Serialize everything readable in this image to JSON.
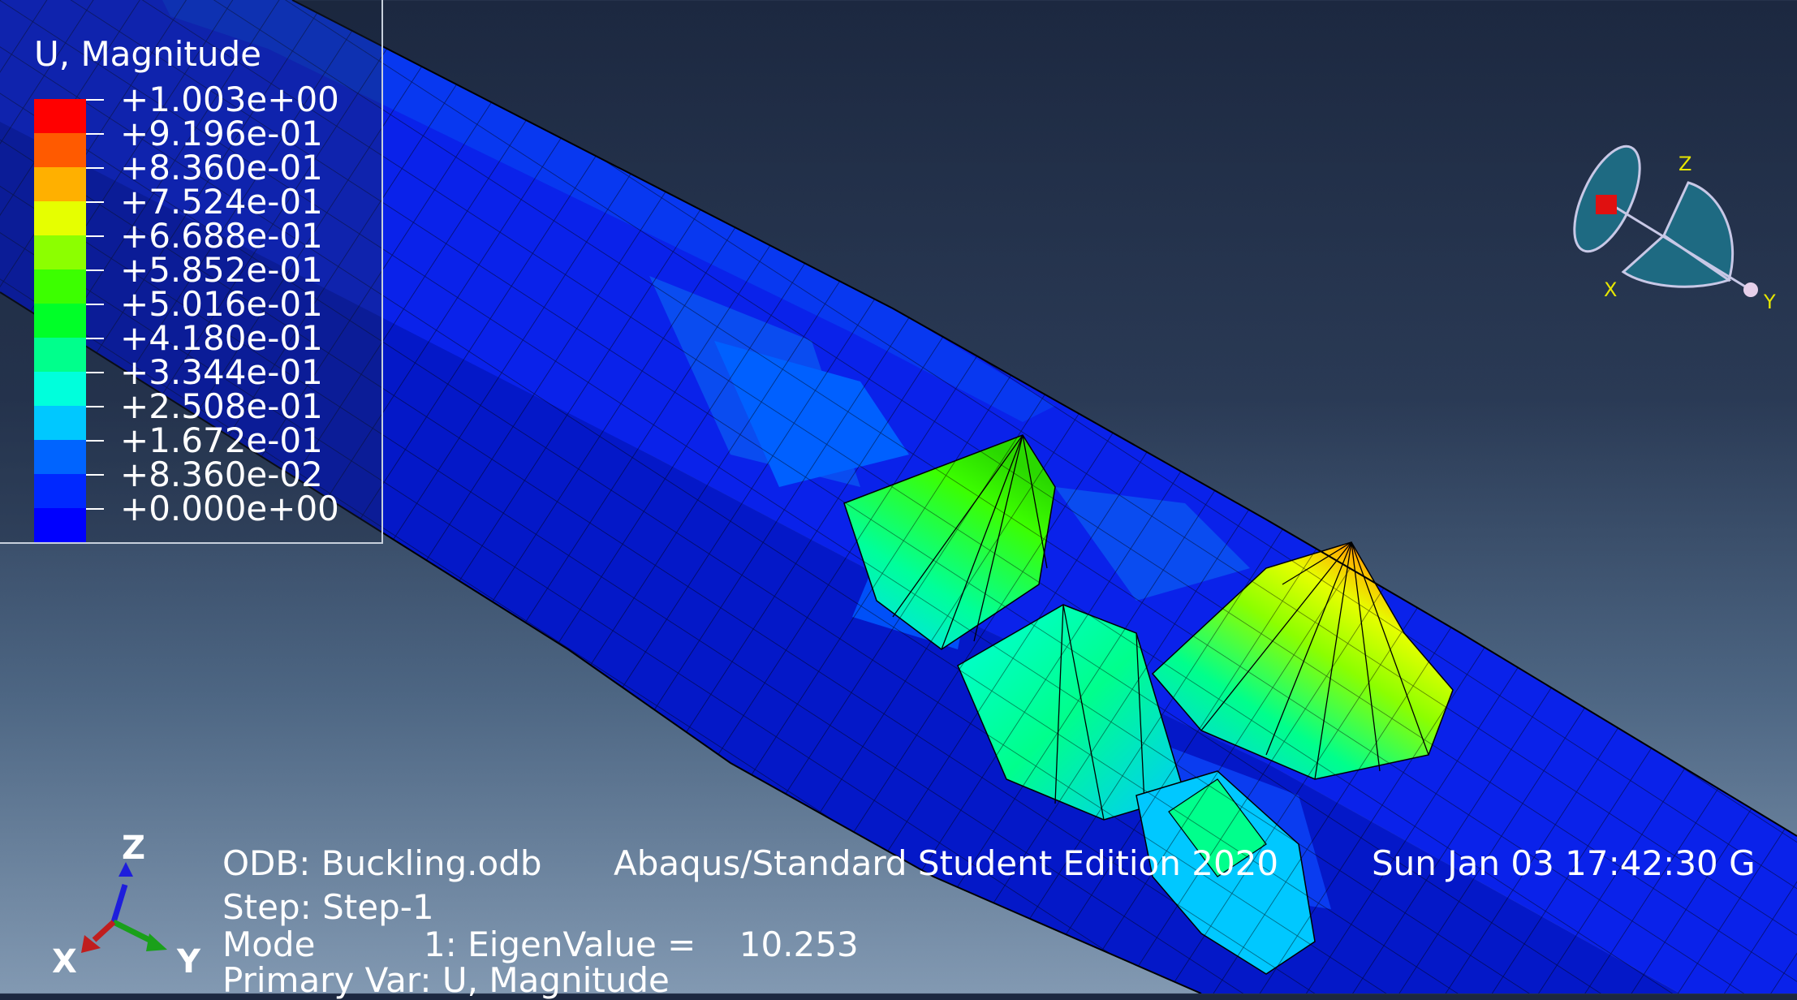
{
  "legend": {
    "title": "U, Magnitude",
    "labels": [
      "+1.003e+00",
      "+9.196e-01",
      "+8.360e-01",
      "+7.524e-01",
      "+6.688e-01",
      "+5.852e-01",
      "+5.016e-01",
      "+4.180e-01",
      "+3.344e-01",
      "+2.508e-01",
      "+1.672e-01",
      "+8.360e-02",
      "+0.000e+00"
    ],
    "colors": [
      "#ff0000",
      "#ff5a00",
      "#ffb000",
      "#e6ff00",
      "#8cff00",
      "#3cff00",
      "#00ff28",
      "#00ff8c",
      "#00ffdc",
      "#00c8ff",
      "#0064ff",
      "#0028ff",
      "#0000ff"
    ]
  },
  "info": {
    "odb": "ODB: Buckling.odb",
    "edition": "Abaqus/Standard Student Edition 2020",
    "datetime": "Sun Jan 03 17:42:30 G",
    "step": "Step: Step-1",
    "mode": "Mode          1: EigenValue =    10.253",
    "primary_var": "Primary Var: U, Magnitude"
  },
  "triad_bottom": {
    "x": "X",
    "y": "Y",
    "z": "Z"
  },
  "triad_top": {
    "x": "X",
    "y": "Y",
    "z": "Z"
  },
  "colors": {
    "mesh_base": "#0a1fe6",
    "mesh_line": "#000000"
  }
}
